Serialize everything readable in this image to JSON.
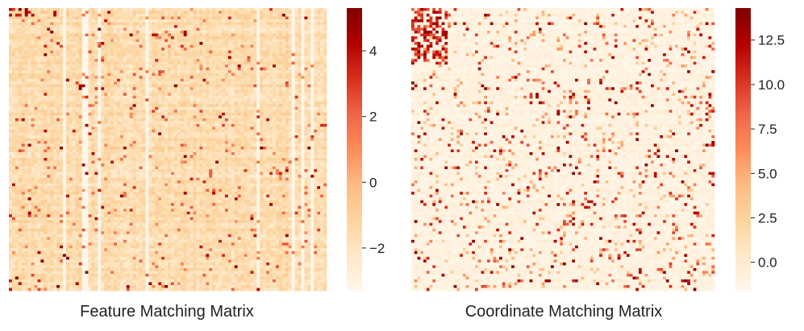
{
  "chart_data": [
    {
      "type": "heatmap",
      "title": "Feature Matching Matrix",
      "rows": 100,
      "cols": 100,
      "colorbar": {
        "range": [
          -3.3,
          5.3
        ],
        "ticks": [
          -2,
          0,
          2,
          4
        ],
        "tick_labels": [
          "−2",
          "0",
          "2",
          "4"
        ]
      },
      "value_summary": {
        "typical_range": [
          -3.0,
          0.5
        ],
        "peak": 5.3
      }
    },
    {
      "type": "heatmap",
      "title": "Coordinate Matching Matrix",
      "rows": 100,
      "cols": 100,
      "colorbar": {
        "range": [
          -1.6,
          14.3
        ],
        "ticks": [
          0,
          2.5,
          5,
          7.5,
          10,
          12.5
        ],
        "tick_labels": [
          "0.0",
          "2.5",
          "5.0",
          "7.5",
          "10.0",
          "12.5"
        ]
      },
      "value_summary": {
        "typical_range": [
          -1.5,
          3.0
        ],
        "peak": 14.3
      }
    }
  ],
  "colormap": {
    "name": "OrRd",
    "stops": [
      "#fff7ec",
      "#fee8c8",
      "#fdd49e",
      "#fdbb84",
      "#fc8d59",
      "#ef6548",
      "#d7301f",
      "#b30000",
      "#7f0000"
    ]
  }
}
